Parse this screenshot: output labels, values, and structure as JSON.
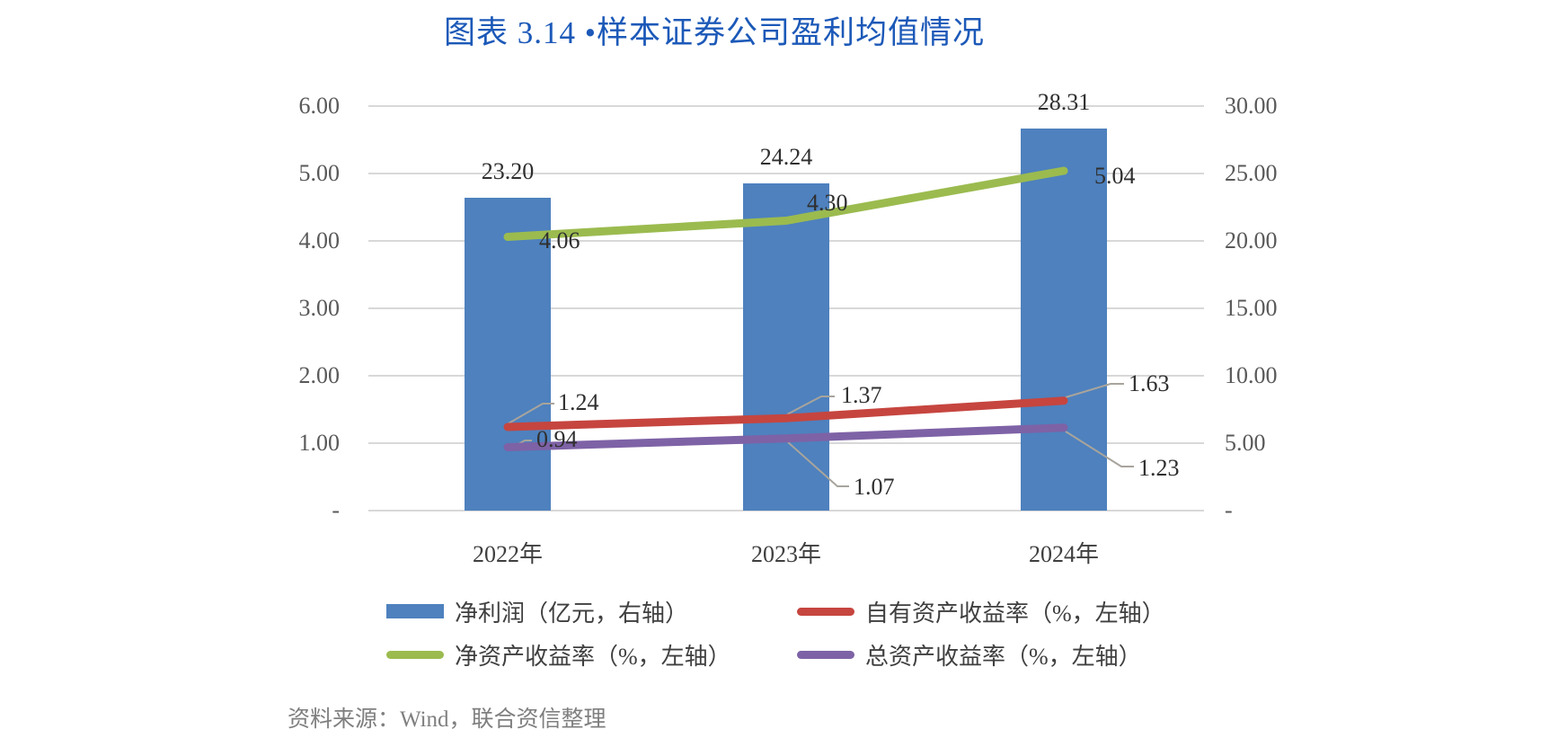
{
  "title": "图表 3.14 •样本证券公司盈利均值情况",
  "source_note": "资料来源：Wind，联合资信整理",
  "colors": {
    "title": "#1c59b8",
    "grid": "#d8d8d8",
    "leader_line": "#a8a49c",
    "tick_text": "#595959",
    "data_label_text": "#2f2f2f",
    "axis_label_text": "#3f3f3f",
    "source_text": "#7f7f7f"
  },
  "chart_data": {
    "type": "bar",
    "subtype": "combo-bar-line-dual-axis",
    "title": "图表 3.14 •样本证券公司盈利均值情况",
    "categories": [
      "2022年",
      "2023年",
      "2024年"
    ],
    "series": [
      {
        "name": "净利润（亿元，右轴）",
        "type": "bar",
        "axis": "right",
        "color": "#4e81be",
        "values": [
          23.2,
          24.24,
          28.31
        ],
        "labels": [
          "23.20",
          "24.24",
          "28.31"
        ]
      },
      {
        "name": "自有资产收益率（%，左轴）",
        "type": "line",
        "axis": "left",
        "color": "#c6453f",
        "values": [
          1.24,
          1.37,
          1.63
        ],
        "labels": [
          "1.24",
          "1.37",
          "1.63"
        ]
      },
      {
        "name": "净资产收益率（%，左轴）",
        "type": "line",
        "axis": "left",
        "color": "#9bbb4f",
        "values": [
          4.06,
          4.3,
          5.04
        ],
        "labels": [
          "4.06",
          "4.30",
          "5.04"
        ]
      },
      {
        "name": "总资产收益率（%，左轴）",
        "type": "line",
        "axis": "left",
        "color": "#7e62a6",
        "values": [
          0.94,
          1.07,
          1.23
        ],
        "labels": [
          "0.94",
          "1.07",
          "1.23"
        ]
      }
    ],
    "left_axis": {
      "min": 0,
      "max": 6,
      "tick_labels": [
        "6.00",
        "5.00",
        "4.00",
        "3.00",
        "2.00",
        "1.00",
        "-"
      ]
    },
    "right_axis": {
      "min": 0,
      "max": 30,
      "tick_labels": [
        "30.00",
        "25.00",
        "20.00",
        "15.00",
        "10.00",
        "5.00",
        "-"
      ]
    },
    "grid": true,
    "legend_position": "bottom",
    "legend_rows": [
      [
        0,
        1
      ],
      [
        2,
        3
      ]
    ]
  }
}
